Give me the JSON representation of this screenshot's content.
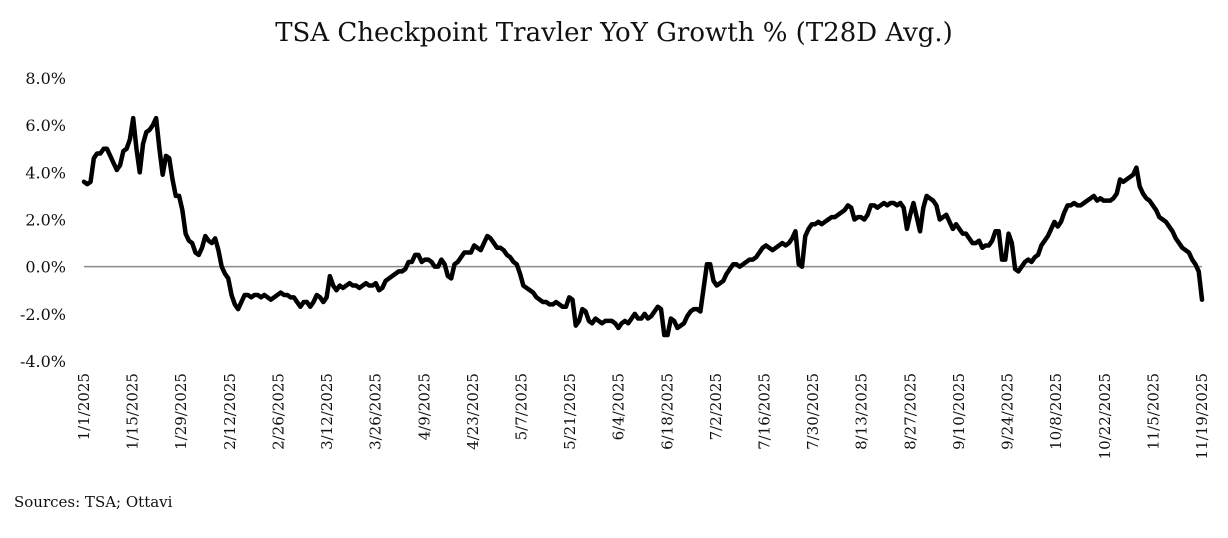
{
  "chart_data": {
    "type": "line",
    "title": "TSA Checkpoint Travler YoY Growth % (T28D Avg.)",
    "xlabel": "",
    "ylabel": "",
    "ylim": [
      -4,
      8
    ],
    "y_ticks": [
      "8.0%",
      "6.0%",
      "4.0%",
      "2.0%",
      "0.0%",
      "-2.0%",
      "-4.0%"
    ],
    "x_ticks": [
      "1/1/2025",
      "1/15/2025",
      "1/29/2025",
      "2/12/2025",
      "2/26/2025",
      "3/12/2025",
      "3/26/2025",
      "4/9/2025",
      "4/23/2025",
      "5/7/2025",
      "5/21/2025",
      "6/4/2025",
      "6/18/2025",
      "7/2/2025",
      "7/16/2025",
      "7/30/2025",
      "8/13/2025",
      "8/27/2025",
      "9/10/2025",
      "9/24/2025",
      "10/8/2025",
      "10/22/2025",
      "11/5/2025",
      "11/19/2025"
    ],
    "grid": false,
    "line_color": "#000000",
    "zero_line_color": "#8a8a8a",
    "series": [
      {
        "values": [
          3.6,
          3.5,
          3.6,
          4.6,
          4.8,
          4.8,
          5.0,
          5.0,
          4.7,
          4.4,
          4.1,
          4.3,
          4.9,
          5.0,
          5.4,
          6.3,
          5.0,
          4.0,
          5.2,
          5.7,
          5.8,
          6.0,
          6.3,
          5.0,
          3.9,
          4.7,
          4.6,
          3.7,
          3.0,
          3.0,
          2.4,
          1.4,
          1.1,
          1.0,
          0.6,
          0.5,
          0.8,
          1.3,
          1.1,
          1.0,
          1.2,
          0.7,
          0.0,
          -0.3,
          -0.5,
          -1.2,
          -1.6,
          -1.8,
          -1.5,
          -1.2,
          -1.2,
          -1.3,
          -1.2,
          -1.2,
          -1.3,
          -1.2,
          -1.3,
          -1.4,
          -1.3,
          -1.2,
          -1.1,
          -1.2,
          -1.2,
          -1.3,
          -1.3,
          -1.5,
          -1.7,
          -1.5,
          -1.5,
          -1.7,
          -1.5,
          -1.2,
          -1.3,
          -1.5,
          -1.3,
          -0.4,
          -0.8,
          -1.0,
          -0.8,
          -0.9,
          -0.8,
          -0.7,
          -0.8,
          -0.8,
          -0.9,
          -0.8,
          -0.7,
          -0.8,
          -0.8,
          -0.7,
          -1.0,
          -0.9,
          -0.6,
          -0.5,
          -0.4,
          -0.3,
          -0.2,
          -0.2,
          -0.1,
          0.2,
          0.2,
          0.5,
          0.5,
          0.2,
          0.3,
          0.3,
          0.2,
          0.0,
          0.0,
          0.3,
          0.1,
          -0.4,
          -0.5,
          0.1,
          0.2,
          0.4,
          0.6,
          0.6,
          0.6,
          0.9,
          0.8,
          0.7,
          1.0,
          1.3,
          1.2,
          1.0,
          0.8,
          0.8,
          0.7,
          0.5,
          0.4,
          0.2,
          0.1,
          -0.3,
          -0.8,
          -0.9,
          -1.0,
          -1.1,
          -1.3,
          -1.4,
          -1.5,
          -1.5,
          -1.6,
          -1.6,
          -1.5,
          -1.6,
          -1.7,
          -1.7,
          -1.3,
          -1.4,
          -2.5,
          -2.3,
          -1.8,
          -1.9,
          -2.3,
          -2.4,
          -2.2,
          -2.3,
          -2.4,
          -2.3,
          -2.3,
          -2.3,
          -2.4,
          -2.6,
          -2.4,
          -2.3,
          -2.4,
          -2.2,
          -2.0,
          -2.2,
          -2.2,
          -2.0,
          -2.2,
          -2.1,
          -1.9,
          -1.7,
          -1.8,
          -2.9,
          -2.9,
          -2.2,
          -2.3,
          -2.6,
          -2.5,
          -2.4,
          -2.1,
          -1.9,
          -1.8,
          -1.8,
          -1.9,
          -0.9,
          0.1,
          0.1,
          -0.6,
          -0.8,
          -0.7,
          -0.6,
          -0.3,
          -0.1,
          0.1,
          0.1,
          0.0,
          0.1,
          0.2,
          0.3,
          0.3,
          0.4,
          0.6,
          0.8,
          0.9,
          0.8,
          0.7,
          0.8,
          0.9,
          1.0,
          0.9,
          1.0,
          1.2,
          1.5,
          0.1,
          0.0,
          1.3,
          1.6,
          1.8,
          1.8,
          1.9,
          1.8,
          1.9,
          2.0,
          2.1,
          2.1,
          2.2,
          2.3,
          2.4,
          2.6,
          2.5,
          2.0,
          2.1,
          2.1,
          2.0,
          2.2,
          2.6,
          2.6,
          2.5,
          2.6,
          2.7,
          2.6,
          2.7,
          2.7,
          2.6,
          2.7,
          2.5,
          1.6,
          2.2,
          2.7,
          2.1,
          1.5,
          2.5,
          3.0,
          2.9,
          2.8,
          2.6,
          2.0,
          2.1,
          2.2,
          1.9,
          1.6,
          1.8,
          1.6,
          1.4,
          1.4,
          1.2,
          1.0,
          1.0,
          1.1,
          0.8,
          0.9,
          0.9,
          1.1,
          1.5,
          1.5,
          0.3,
          0.3,
          1.4,
          1.0,
          -0.1,
          -0.2,
          0.0,
          0.2,
          0.3,
          0.2,
          0.4,
          0.5,
          0.9,
          1.1,
          1.3,
          1.6,
          1.9,
          1.7,
          1.9,
          2.3,
          2.6,
          2.6,
          2.7,
          2.6,
          2.6,
          2.7,
          2.8,
          2.9,
          3.0,
          2.8,
          2.9,
          2.8,
          2.8,
          2.8,
          2.9,
          3.1,
          3.7,
          3.6,
          3.7,
          3.8,
          3.9,
          4.2,
          3.4,
          3.1,
          2.9,
          2.8,
          2.6,
          2.4,
          2.1,
          2.0,
          1.9,
          1.7,
          1.5,
          1.2,
          1.0,
          0.8,
          0.7,
          0.6,
          0.3,
          0.1,
          -0.2,
          -1.4
        ]
      }
    ]
  },
  "source_note": "Sources: TSA; Ottavi"
}
